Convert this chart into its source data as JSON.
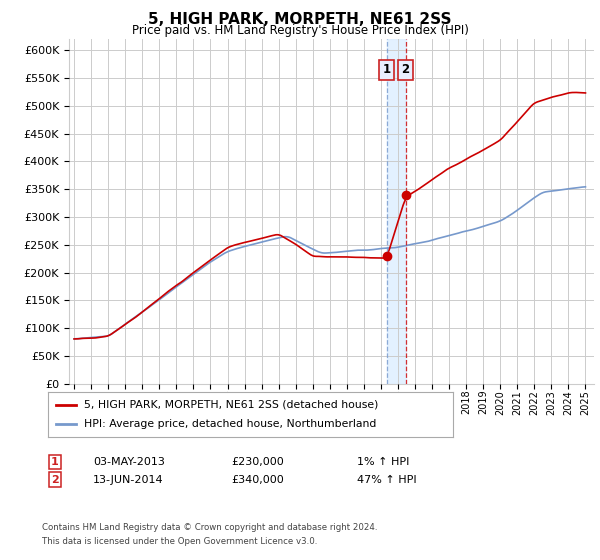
{
  "title": "5, HIGH PARK, MORPETH, NE61 2SS",
  "subtitle": "Price paid vs. HM Land Registry's House Price Index (HPI)",
  "legend_label_red": "5, HIGH PARK, MORPETH, NE61 2SS (detached house)",
  "legend_label_blue": "HPI: Average price, detached house, Northumberland",
  "sale1_date": 2013.34,
  "sale1_price": 230000,
  "sale1_label": "03-MAY-2013",
  "sale1_hpi_pct": "1% ↑ HPI",
  "sale2_date": 2014.45,
  "sale2_price": 340000,
  "sale2_label": "13-JUN-2014",
  "sale2_hpi_pct": "47% ↑ HPI",
  "footer1": "Contains HM Land Registry data © Crown copyright and database right 2024.",
  "footer2": "This data is licensed under the Open Government Licence v3.0.",
  "ylim": [
    0,
    620000
  ],
  "yticks": [
    0,
    50000,
    100000,
    150000,
    200000,
    250000,
    300000,
    350000,
    400000,
    450000,
    500000,
    550000,
    600000
  ],
  "xlim": [
    1994.7,
    2025.5
  ],
  "red_color": "#cc0000",
  "blue_color": "#7799cc",
  "shade_color": "#ddeeff",
  "bg_color": "#ffffff",
  "grid_color": "#cccccc"
}
